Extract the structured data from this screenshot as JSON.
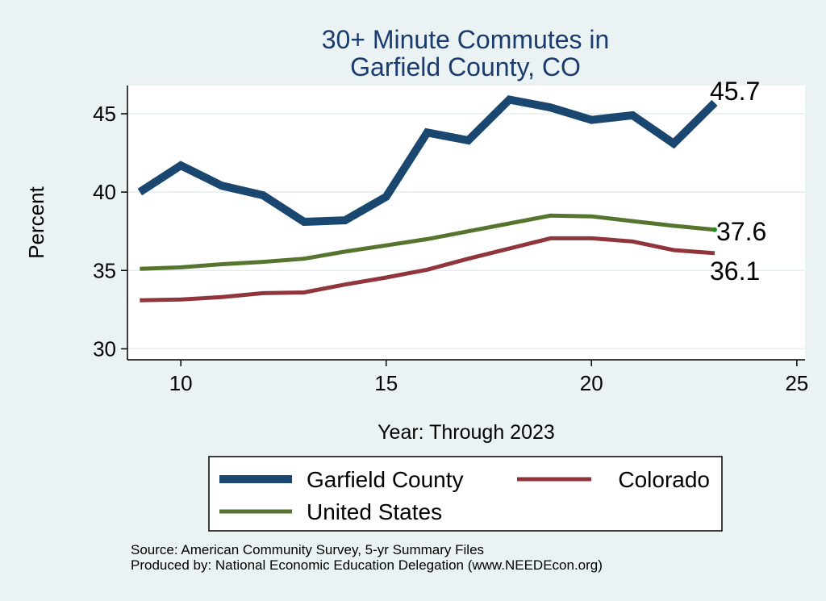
{
  "chart_data": {
    "type": "line",
    "title": [
      "30+ Minute Commutes in",
      "Garfield County, CO"
    ],
    "xlabel": "Year: Through 2023",
    "ylabel": "Percent",
    "xlim": [
      8.7,
      25.2
    ],
    "ylim": [
      29.3,
      46.8
    ],
    "xticks": [
      10,
      15,
      20,
      25
    ],
    "yticks": [
      30,
      35,
      40,
      45
    ],
    "xtick_labels": [
      "10",
      "15",
      "20",
      "25"
    ],
    "ytick_labels": [
      "30",
      "35",
      "40",
      "45"
    ],
    "x": [
      9,
      10,
      11,
      12,
      13,
      14,
      15,
      16,
      17,
      18,
      19,
      20,
      21,
      22,
      23
    ],
    "series": [
      {
        "name": "Garfield County",
        "color": "#1a476f",
        "weight": "thick",
        "values": [
          40.0,
          41.7,
          40.4,
          39.8,
          38.1,
          38.2,
          39.7,
          43.8,
          43.3,
          45.9,
          45.4,
          44.6,
          44.9,
          43.1,
          45.7
        ],
        "end_label": "45.7"
      },
      {
        "name": "Colorado",
        "color": "#90353b",
        "weight": "medium",
        "values": [
          33.1,
          33.15,
          33.3,
          33.55,
          33.6,
          34.1,
          34.55,
          35.05,
          35.75,
          36.4,
          37.05,
          37.05,
          36.85,
          36.3,
          36.1
        ],
        "end_label": "36.1"
      },
      {
        "name": "United States",
        "color": "#55752f",
        "weight": "medium",
        "values": [
          35.1,
          35.2,
          35.4,
          35.55,
          35.75,
          36.2,
          36.6,
          37.0,
          37.5,
          38.0,
          38.5,
          38.45,
          38.15,
          37.85,
          37.6
        ],
        "end_label": "37.6"
      }
    ],
    "legend": {
      "placement": "bottom",
      "entries": [
        "Garfield County",
        "Colorado",
        "United States"
      ]
    }
  },
  "footer": {
    "source": "Source: American Community Survey, 5-yr Summary Files",
    "produced_by": "Produced by: National Economic Education Delegation (www.NEEDEcon.org)"
  }
}
